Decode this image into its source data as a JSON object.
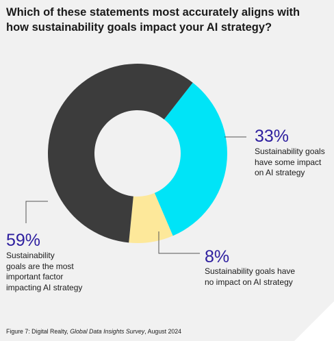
{
  "chart_data": {
    "type": "pie",
    "variant": "donut",
    "title_lines": [
      "Which of these statements most accurately aligns with",
      "how sustainability goals impact your AI strategy?"
    ],
    "slices": [
      {
        "value": 33,
        "label": "33%",
        "description_lines": [
          "Sustainability goals",
          "have some impact",
          "on AI strategy"
        ],
        "color": "#00e4f7"
      },
      {
        "value": 8,
        "label": "8%",
        "description_lines": [
          "Sustainability goals have",
          "no impact on AI strategy"
        ],
        "color": "#fde89a"
      },
      {
        "value": 59,
        "label": "59%",
        "description_lines": [
          "Sustainability",
          "goals are the most",
          "important factor",
          "impacting AI strategy"
        ],
        "color": "#3c3c3c"
      }
    ],
    "start_angle_deg": 38
  },
  "caption": {
    "prefix": "Figure 7: Digital Realty, ",
    "source": "Global Data Insights Survey",
    "suffix": ", August 2024"
  },
  "colors": {
    "background": "#f1f1f1",
    "corner_accent": "#ffffff",
    "percent_text": "#2d1e9f",
    "leader_line": "#555555"
  }
}
